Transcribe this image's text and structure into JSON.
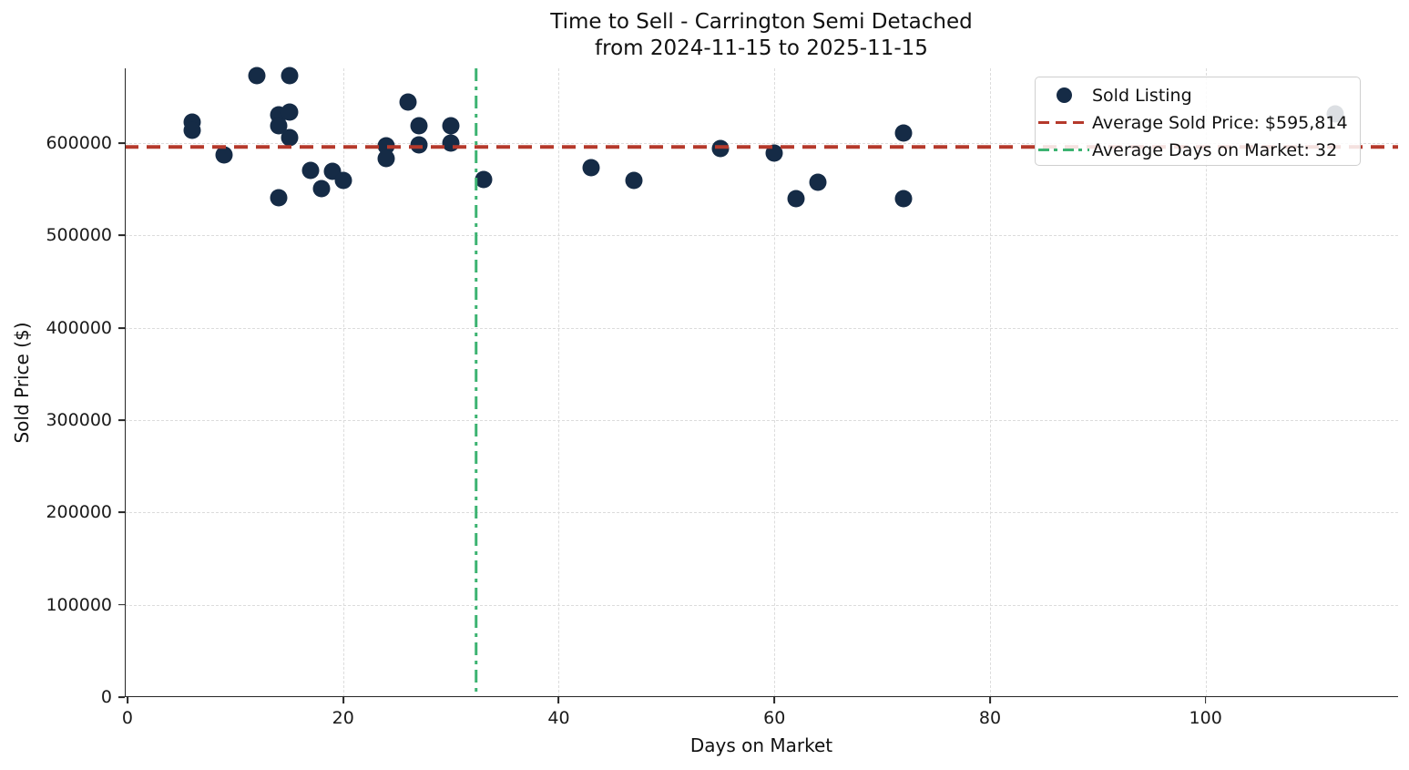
{
  "figure": {
    "title_line1": "Time to Sell - Carrington Semi Detached",
    "title_line2": "from 2024-11-15 to 2025-11-15"
  },
  "axes": {
    "xlabel": "Days on Market",
    "ylabel": "Sold Price ($)",
    "x_ticks": [
      {
        "value": 0,
        "label": "0"
      },
      {
        "value": 20,
        "label": "20"
      },
      {
        "value": 40,
        "label": "40"
      },
      {
        "value": 60,
        "label": "60"
      },
      {
        "value": 80,
        "label": "80"
      },
      {
        "value": 100,
        "label": "100"
      }
    ],
    "y_ticks": [
      {
        "value": 0,
        "label": "0"
      },
      {
        "value": 100000,
        "label": "100000"
      },
      {
        "value": 200000,
        "label": "200000"
      },
      {
        "value": 300000,
        "label": "300000"
      },
      {
        "value": 400000,
        "label": "400000"
      },
      {
        "value": 500000,
        "label": "500000"
      },
      {
        "value": 600000,
        "label": "600000"
      }
    ],
    "xlim": [
      -0.25,
      117.85
    ],
    "ylim": [
      0,
      681000
    ],
    "grid": true
  },
  "legend": {
    "items": [
      {
        "label": "Sold Listing",
        "marker": "dot"
      },
      {
        "label": "Average Sold Price: $595,814",
        "marker": "dashed-line"
      },
      {
        "label": "Average Days on Market: 32",
        "marker": "dashdot-line"
      }
    ]
  },
  "colors": {
    "point": "#152b46",
    "avg_price_line": "#b5392b",
    "avg_days_line": "#3cb371",
    "grid": "#dcdcdc",
    "spine": "#262626",
    "text": "#111111"
  },
  "chart_data": {
    "type": "scatter",
    "title": "Time to Sell - Carrington Semi Detached from 2024-11-15 to 2025-11-15",
    "xlabel": "Days on Market",
    "ylabel": "Sold Price ($)",
    "xlim": [
      -0.25,
      117.85
    ],
    "ylim": [
      0,
      681000
    ],
    "grid": true,
    "legend_position": "upper right",
    "avg_sold_price": 595814,
    "avg_days_on_market": 32,
    "series": [
      {
        "name": "Sold Listing",
        "points": [
          [
            6,
            623000
          ],
          [
            6,
            614000
          ],
          [
            9,
            587000
          ],
          [
            12,
            673000
          ],
          [
            14,
            631000
          ],
          [
            14,
            619000
          ],
          [
            14,
            541000
          ],
          [
            15,
            673000
          ],
          [
            15,
            634000
          ],
          [
            15,
            606000
          ],
          [
            17,
            570000
          ],
          [
            18,
            551000
          ],
          [
            19,
            569000
          ],
          [
            20,
            560000
          ],
          [
            24,
            597000
          ],
          [
            24,
            583000
          ],
          [
            26,
            644000
          ],
          [
            27,
            619000
          ],
          [
            27,
            598000
          ],
          [
            30,
            619000
          ],
          [
            30,
            600000
          ],
          [
            33,
            561000
          ],
          [
            43,
            573000
          ],
          [
            47,
            560000
          ],
          [
            55,
            594000
          ],
          [
            60,
            589000
          ],
          [
            62,
            540000
          ],
          [
            64,
            558000
          ],
          [
            72,
            611000
          ],
          [
            72,
            540000
          ],
          [
            112,
            632000
          ]
        ]
      }
    ]
  }
}
